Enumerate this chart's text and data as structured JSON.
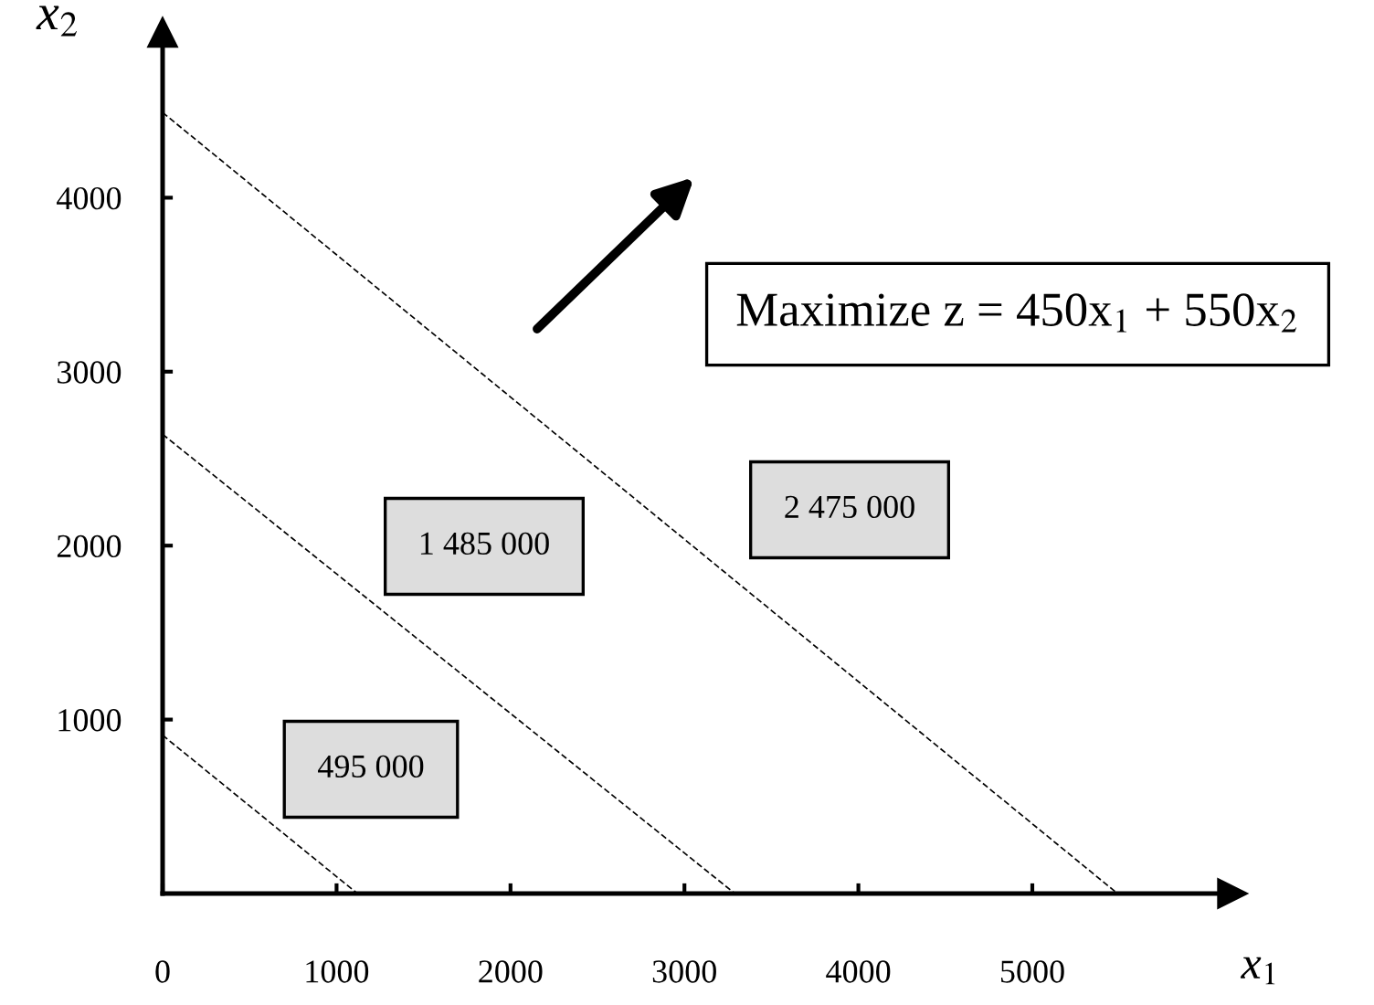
{
  "chart_data": {
    "type": "line",
    "xlabel": "x$_{1}$",
    "ylabel": "x$_{2}$",
    "series": [
      {
        "x": [
          0,
          1120
        ],
        "values": [
          910,
          0
        ],
        "color": "#000000"
      },
      {
        "x": [
          0,
          3290
        ],
        "values": [
          2640,
          0
        ],
        "color": "#000000"
      },
      {
        "x": [
          0,
          5490
        ],
        "values": [
          4490,
          0
        ],
        "color": "#000000"
      }
    ],
    "xlim": [
      0,
      6150
    ],
    "ylim": [
      0,
      4950
    ],
    "xticks": [
      0,
      1000,
      2000,
      3000,
      4000,
      5000
    ],
    "yticks": [
      1000,
      2000,
      3000,
      4000
    ],
    "line_style": "dashed",
    "grid": false,
    "annotations": [
      "495 000",
      "1 485 000",
      "2 475 000",
      "Maximize z = 450x$_{1}$ + 550x$_{2}$"
    ]
  }
}
